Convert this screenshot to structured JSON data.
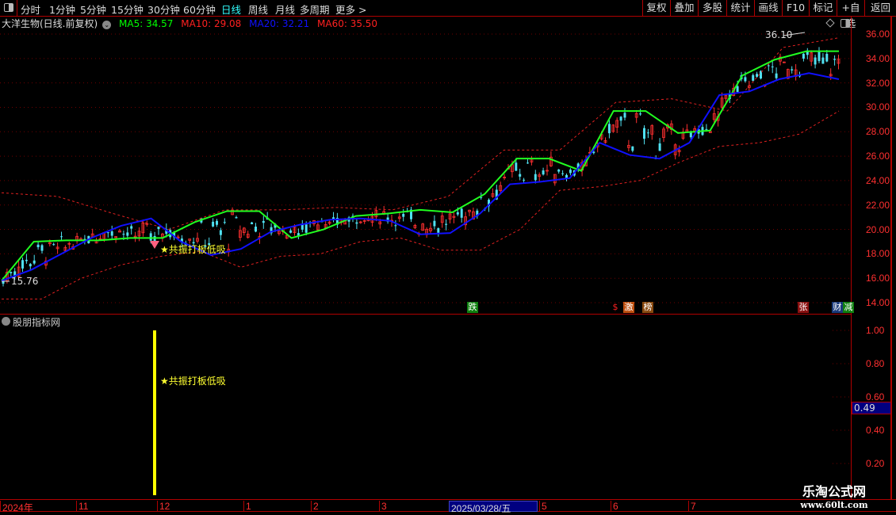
{
  "toolbar": {
    "periods": [
      "分时",
      "1分钟",
      "5分钟",
      "15分钟",
      "30分钟",
      "60分钟",
      "日线",
      "周线",
      "月线",
      "多周期",
      "更多 >"
    ],
    "active": "日线",
    "right_buttons": [
      "复权",
      "叠加",
      "多股",
      "统计",
      "画线",
      "F10",
      "标记",
      "+自选",
      "返回"
    ]
  },
  "info": {
    "title": "大洋生物(日线.前复权)",
    "ma5": "MA5: 34.57",
    "ma10": "MA10: 29.08",
    "ma20": "MA20: 32.21",
    "ma60": "MA60: 35.50",
    "colors": {
      "ma5": "#00ff00",
      "ma10": "#ff2020",
      "ma20": "#0000ff",
      "ma60": "#ff2020"
    }
  },
  "price_axis": [
    "36.00",
    "34.00",
    "32.00",
    "30.00",
    "28.00",
    "26.00",
    "24.00",
    "22.00",
    "20.00",
    "18.00",
    "16.00",
    "14.00"
  ],
  "annotations": {
    "high": "36.10",
    "low": "15.76",
    "signal": "★共振打板低吸"
  },
  "events": [
    {
      "label": "跌",
      "color": "#108010"
    },
    {
      "label": "$",
      "color": "#ff2020"
    },
    {
      "label": "激",
      "color": "#c05010"
    },
    {
      "label": "榜",
      "color": "#8a4a10"
    },
    {
      "label": "张",
      "color": "#8b1010"
    },
    {
      "label": "财",
      "color": "#1a3a7a"
    },
    {
      "label": "减",
      "color": "#108010"
    }
  ],
  "indicator": {
    "title": "股朋指标网",
    "signal": "★共振打板低吸",
    "axis": [
      "1.00",
      "0.80",
      "0.60",
      "0.40",
      "0.20"
    ],
    "current": "0.49",
    "bar_value": 1.0
  },
  "date_axis": [
    "2024年",
    "11",
    "12",
    "1",
    "2",
    "3",
    "2025/03/28/五",
    "5",
    "6",
    "7"
  ],
  "watermark": {
    "name": "乐淘公式网",
    "url": "www.60lt.com"
  },
  "chart_data": {
    "type": "candlestick",
    "ylim": [
      14,
      36
    ],
    "green_line": [
      15.8,
      19.0,
      19.1,
      19.1,
      19.3,
      19.3,
      20.6,
      21.5,
      21.5,
      19.3,
      20.0,
      21.1,
      21.3,
      21.6,
      21.4,
      22.9,
      25.8,
      25.8,
      24.8,
      29.7,
      29.7,
      27.9,
      28.1,
      32.6,
      33.9,
      34.6,
      34.6
    ],
    "blue_line": [
      15.8,
      16.7,
      18.0,
      19.3,
      20.3,
      20.9,
      19.0,
      17.9,
      18.4,
      19.8,
      20.4,
      20.8,
      20.9,
      20.7,
      19.6,
      19.7,
      21.3,
      23.7,
      23.9,
      24.2,
      27.1,
      26.1,
      25.8,
      27.1,
      31.0,
      31.3,
      32.3,
      32.8,
      32.3
    ],
    "upper_band": [
      23.0,
      22.7,
      21.3,
      20.0,
      21.6,
      21.6,
      21.8,
      21.6,
      22.7,
      26.5,
      26.5,
      30.4,
      30.7,
      29.7,
      34.9,
      35.7
    ],
    "lower_band": [
      14.3,
      14.3,
      16.0,
      17.1,
      17.8,
      18.2,
      16.9,
      17.8,
      18.0,
      19.0,
      19.3,
      18.3,
      18.3,
      20.0,
      23.2,
      23.5,
      24.0,
      25.5,
      26.8,
      27.1,
      27.8,
      29.7
    ]
  }
}
